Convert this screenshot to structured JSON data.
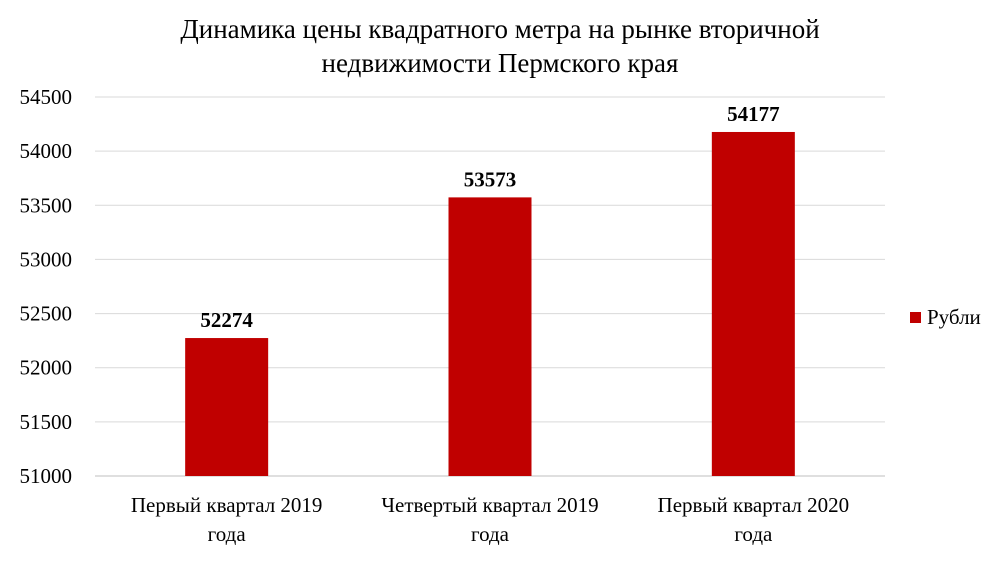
{
  "chart_data": {
    "type": "bar",
    "title": "Динамика цены квадратного метра на рынке вторичной недвижимости Пермского края",
    "categories": [
      [
        "Первый квартал 2019",
        "года"
      ],
      [
        "Четвертый квартал 2019",
        "года"
      ],
      [
        "Первый квартал 2020",
        "года"
      ]
    ],
    "series": [
      {
        "name": "Рубли",
        "values": [
          52274,
          53573,
          54177
        ],
        "color": "#C00000"
      }
    ],
    "ylim": [
      51000,
      54500
    ],
    "yticks": [
      51000,
      51500,
      52000,
      52500,
      53000,
      53500,
      54000,
      54500
    ],
    "grid": true,
    "legend": "right",
    "data_labels": true
  }
}
